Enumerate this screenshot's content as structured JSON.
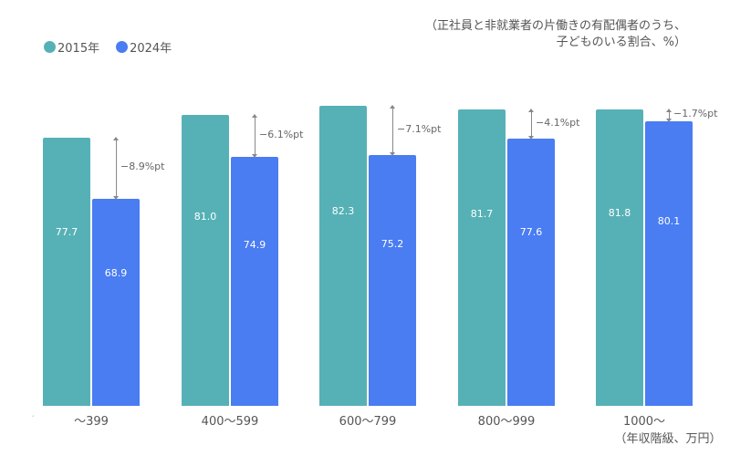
{
  "legend": {
    "items": [
      {
        "label": "2015年",
        "color": "#56b1b6"
      },
      {
        "label": "2024年",
        "color": "#4a7cf2"
      }
    ]
  },
  "note": {
    "line1": "（正社員と非就業者の片働きの有配偶者のうち、",
    "line2": "子どものいる割合、%）"
  },
  "axis": {
    "unit_label": "（年収階級、万円）"
  },
  "chart_data": {
    "type": "bar",
    "title": "",
    "subtitle": "（正社員と非就業者の片働きの有配偶者のうち、子どものいる割合、%）",
    "xlabel": "（年収階級、万円）",
    "ylabel": "",
    "categories": [
      "〜399",
      "400〜599",
      "600〜799",
      "800〜999",
      "1000〜"
    ],
    "series": [
      {
        "name": "2015年",
        "color": "#56b1b6",
        "values": [
          77.7,
          81.0,
          82.3,
          81.7,
          81.8
        ],
        "labels": [
          "77.7",
          "81.0",
          "82.3",
          "81.7",
          "81.8"
        ]
      },
      {
        "name": "2024年",
        "color": "#4a7cf2",
        "values": [
          68.9,
          74.9,
          75.2,
          77.6,
          80.1
        ],
        "labels": [
          "68.9",
          "74.9",
          "75.2",
          "77.6",
          "80.1"
        ]
      }
    ],
    "annotations": [
      "−8.9%pt",
      "−6.1%pt",
      "−7.1%pt",
      "−4.1%pt",
      "−1.7%pt"
    ],
    "legend_position": "top-left",
    "grid": false,
    "ylim": [
      39,
      83
    ]
  }
}
